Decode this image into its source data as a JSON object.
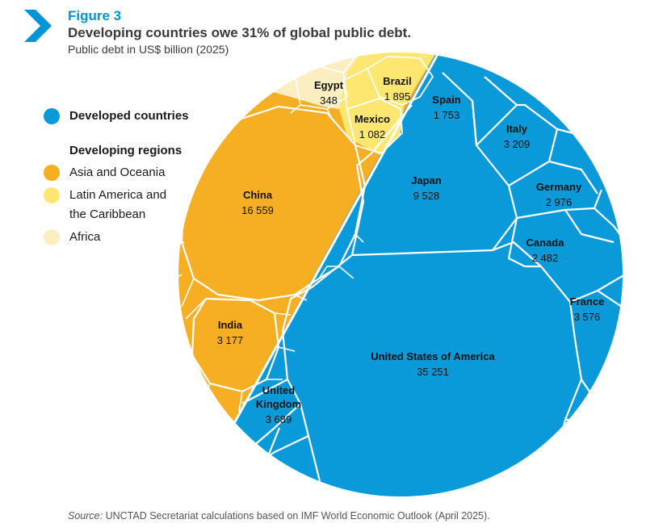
{
  "header": {
    "figure_label": "Figure 3",
    "title": "Developing countries owe 31% of global public debt.",
    "subtitle": "Public debt in US$ billion (2025)"
  },
  "legend": {
    "developed": "Developed countries",
    "developing_heading": "Developing regions",
    "asia": "Asia and Oceania",
    "latam_line1": "Latin America and",
    "latam_line2": "the Caribbean",
    "africa": "Africa"
  },
  "colors": {
    "developed": "#0a9ad9",
    "asia": "#f6ae22",
    "latam": "#fde771",
    "africa": "#fbefc2",
    "accent": "#0095d9"
  },
  "chart_data": {
    "type": "voronoi-treemap",
    "title": "Developing countries owe 31% of global public debt.",
    "subtitle": "Public debt in US$ billion (2025)",
    "unit": "US$ billion",
    "series": [
      {
        "name": "Developed countries",
        "group": "developed",
        "label": "United States of America",
        "value": 35251,
        "value_text": "35 251"
      },
      {
        "name": "Developed countries",
        "group": "developed",
        "label": "Japan",
        "value": 9528,
        "value_text": "9 528"
      },
      {
        "name": "Developed countries",
        "group": "developed",
        "label": "United Kingdom",
        "value": 3689,
        "value_text": "3 689"
      },
      {
        "name": "Developed countries",
        "group": "developed",
        "label": "France",
        "value": 3576,
        "value_text": "3 576"
      },
      {
        "name": "Developed countries",
        "group": "developed",
        "label": "Italy",
        "value": 3209,
        "value_text": "3 209"
      },
      {
        "name": "Developed countries",
        "group": "developed",
        "label": "Germany",
        "value": 2976,
        "value_text": "2 976"
      },
      {
        "name": "Developed countries",
        "group": "developed",
        "label": "Canada",
        "value": 2482,
        "value_text": "2 482"
      },
      {
        "name": "Developed countries",
        "group": "developed",
        "label": "Spain",
        "value": 1753,
        "value_text": "1 753"
      },
      {
        "name": "Asia and Oceania",
        "group": "asia",
        "label": "China",
        "value": 16559,
        "value_text": "16 559"
      },
      {
        "name": "Asia and Oceania",
        "group": "asia",
        "label": "India",
        "value": 3177,
        "value_text": "3 177"
      },
      {
        "name": "Latin America and the Caribbean",
        "group": "latam",
        "label": "Brazil",
        "value": 1895,
        "value_text": "1 895"
      },
      {
        "name": "Latin America and the Caribbean",
        "group": "latam",
        "label": "Mexico",
        "value": 1082,
        "value_text": "1 082"
      },
      {
        "name": "Africa",
        "group": "africa",
        "label": "Egypt",
        "value": 348,
        "value_text": "348"
      }
    ]
  },
  "footer": {
    "source_label": "Source:",
    "source_text": " UNCTAD Secretariat calculations based on IMF World Economic Outlook (April 2025)."
  }
}
